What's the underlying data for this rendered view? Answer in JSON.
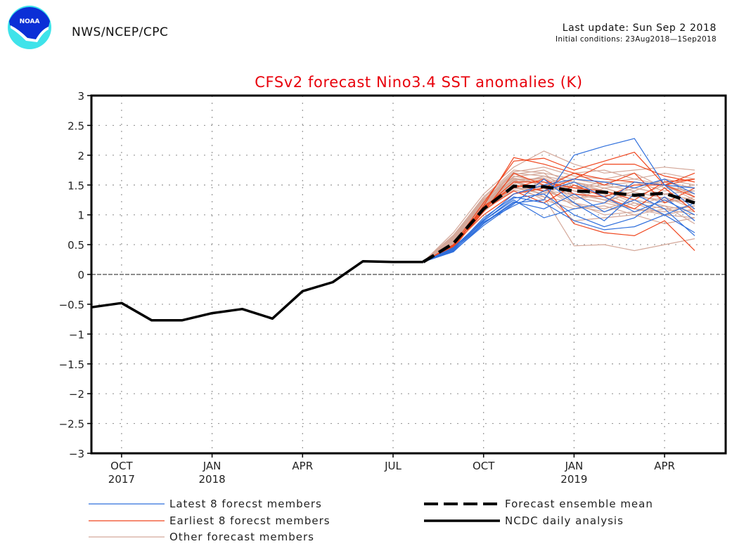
{
  "header": {
    "org": "NWS/NCEP/CPC",
    "last_update": "Last update: Sun Sep  2 2018",
    "initial_conditions": "Initial conditions: 23Aug2018—1Sep2018",
    "logo": "noaa-logo"
  },
  "colors": {
    "title": "#e8000b",
    "latest": "#2f6fdc",
    "earliest": "#f0461e",
    "other": "#d4a89a",
    "mean": "#000000",
    "analysis": "#000000"
  },
  "chart_data": {
    "type": "line",
    "title": "CFSv2 forecast Nino3.4 SST anomalies (K)",
    "xlabel": "",
    "ylabel": "",
    "ylim": [
      -3,
      3
    ],
    "yticks": [
      3,
      2.5,
      2,
      1.5,
      1,
      0.5,
      0,
      -0.5,
      -1,
      -1.5,
      -2,
      -2.5,
      -3
    ],
    "ytick_labels": [
      "3",
      "2.5",
      "2",
      "1.5",
      "1",
      "0.5",
      "0",
      "−0.5",
      "−1",
      "−1.5",
      "−2",
      "−2.5",
      "−3"
    ],
    "x_months": [
      "Sep 2017",
      "Oct 2017",
      "Nov 2017",
      "Dec 2017",
      "Jan 2018",
      "Feb 2018",
      "Mar 2018",
      "Apr 2018",
      "May 2018",
      "Jun 2018",
      "Jul 2018",
      "Aug 2018",
      "Sep 2018",
      "Oct 2018",
      "Nov 2018",
      "Dec 2018",
      "Jan 2019",
      "Feb 2019",
      "Mar 2019",
      "Apr 2019",
      "May 2019"
    ],
    "xticks": [
      {
        "month_index": 1,
        "label": "OCT",
        "year": "2017"
      },
      {
        "month_index": 4,
        "label": "JAN",
        "year": "2018"
      },
      {
        "month_index": 7,
        "label": "APR",
        "year": ""
      },
      {
        "month_index": 10,
        "label": "JUL",
        "year": ""
      },
      {
        "month_index": 13,
        "label": "OCT",
        "year": ""
      },
      {
        "month_index": 16,
        "label": "JAN",
        "year": "2019"
      },
      {
        "month_index": 19,
        "label": "APR",
        "year": ""
      }
    ],
    "grid": true,
    "zero_line": true,
    "analysis": {
      "name": "NCDC daily analysis",
      "start_index": 0,
      "values": [
        -0.55,
        -0.48,
        -0.77,
        -0.77,
        -0.65,
        -0.58,
        -0.74,
        -0.28,
        -0.13,
        0.22,
        0.21,
        0.21
      ]
    },
    "ensemble_mean": {
      "name": "Forecast ensemble mean",
      "start_index": 11,
      "values": [
        0.21,
        0.52,
        1.1,
        1.48,
        1.47,
        1.4,
        1.38,
        1.33,
        1.36,
        1.2
      ]
    },
    "members_start_index": 11,
    "latest_members": [
      [
        0.21,
        0.38,
        0.85,
        1.2,
        1.25,
        2.0,
        2.15,
        2.28,
        1.5,
        1.1
      ],
      [
        0.21,
        0.4,
        0.9,
        1.25,
        0.95,
        1.1,
        1.2,
        1.55,
        1.5,
        1.45
      ],
      [
        0.21,
        0.42,
        0.95,
        1.3,
        1.2,
        0.9,
        0.75,
        0.8,
        1.0,
        0.7
      ],
      [
        0.21,
        0.44,
        0.88,
        1.15,
        1.4,
        1.55,
        1.3,
        1.05,
        1.25,
        1.0
      ],
      [
        0.21,
        0.39,
        0.82,
        1.18,
        1.6,
        1.2,
        0.9,
        1.35,
        1.1,
        0.65
      ],
      [
        0.21,
        0.45,
        0.92,
        1.35,
        1.5,
        1.6,
        1.55,
        1.45,
        1.6,
        1.35
      ],
      [
        0.21,
        0.41,
        0.86,
        1.22,
        1.1,
        1.35,
        1.05,
        1.25,
        1.0,
        1.2
      ],
      [
        0.21,
        0.43,
        0.9,
        1.28,
        1.35,
        1.0,
        0.8,
        0.95,
        1.3,
        0.9
      ]
    ],
    "earliest_members": [
      [
        0.21,
        0.45,
        1.15,
        1.96,
        1.85,
        1.7,
        1.6,
        1.55,
        1.5,
        1.6
      ],
      [
        0.21,
        0.5,
        1.2,
        1.9,
        1.95,
        1.75,
        1.9,
        2.05,
        1.5,
        1.3
      ],
      [
        0.21,
        0.48,
        1.1,
        1.5,
        1.4,
        1.6,
        1.85,
        1.85,
        1.65,
        1.55
      ],
      [
        0.21,
        0.46,
        1.05,
        1.7,
        1.5,
        0.85,
        0.7,
        0.65,
        0.9,
        0.4
      ],
      [
        0.21,
        0.5,
        1.0,
        1.35,
        1.45,
        1.7,
        1.5,
        1.7,
        1.2,
        1.45
      ],
      [
        0.21,
        0.47,
        1.15,
        1.45,
        1.6,
        1.35,
        1.3,
        1.5,
        1.5,
        1.7
      ],
      [
        0.21,
        0.44,
        1.08,
        1.4,
        1.2,
        1.5,
        1.3,
        1.1,
        1.45,
        1.05
      ],
      [
        0.21,
        0.49,
        1.12,
        1.55,
        1.55,
        1.45,
        1.4,
        1.25,
        1.55,
        1.6
      ]
    ],
    "other_members": [
      [
        0.21,
        0.7,
        1.35,
        1.8,
        2.07,
        1.85,
        1.7,
        1.75,
        1.8,
        1.75
      ],
      [
        0.21,
        0.65,
        1.3,
        1.75,
        1.7,
        1.6,
        1.55,
        1.6,
        1.5,
        1.35
      ],
      [
        0.21,
        0.6,
        1.25,
        1.7,
        1.65,
        1.45,
        1.5,
        1.4,
        1.6,
        1.5
      ],
      [
        0.21,
        0.55,
        1.15,
        1.6,
        1.3,
        0.48,
        0.5,
        0.4,
        0.5,
        0.6
      ],
      [
        0.21,
        0.62,
        1.2,
        1.65,
        1.55,
        1.3,
        1.2,
        1.1,
        1.05,
        1.15
      ],
      [
        0.21,
        0.58,
        1.1,
        1.55,
        1.45,
        1.2,
        1.0,
        1.05,
        1.15,
        0.85
      ],
      [
        0.21,
        0.66,
        1.28,
        1.72,
        1.8,
        1.65,
        1.6,
        1.7,
        1.45,
        1.4
      ],
      [
        0.21,
        0.52,
        1.05,
        1.45,
        1.35,
        1.55,
        1.4,
        1.2,
        1.0,
        0.95
      ],
      [
        0.21,
        0.56,
        1.18,
        1.6,
        1.6,
        1.25,
        1.45,
        1.3,
        1.25,
        1.2
      ],
      [
        0.21,
        0.6,
        1.22,
        1.68,
        1.75,
        1.5,
        1.3,
        1.45,
        1.35,
        1.25
      ],
      [
        0.21,
        0.54,
        1.12,
        1.5,
        1.25,
        1.1,
        1.15,
        1.0,
        0.85,
        0.95
      ],
      [
        0.21,
        0.64,
        1.26,
        1.62,
        1.5,
        1.7,
        1.75,
        1.6,
        1.7,
        1.6
      ],
      [
        0.21,
        0.57,
        1.16,
        1.58,
        1.4,
        1.35,
        1.25,
        1.35,
        1.2,
        1.3
      ],
      [
        0.21,
        0.61,
        1.2,
        1.52,
        1.65,
        1.55,
        1.45,
        1.5,
        1.55,
        1.45
      ],
      [
        0.21,
        0.53,
        1.08,
        1.48,
        1.35,
        0.9,
        0.95,
        1.0,
        1.1,
        1.0
      ],
      [
        0.21,
        0.59,
        1.14,
        1.56,
        1.55,
        1.4,
        1.35,
        1.15,
        1.3,
        1.1
      ],
      [
        0.21,
        0.63,
        1.24,
        1.7,
        1.45,
        1.6,
        1.5,
        1.55,
        1.4,
        1.5
      ],
      [
        0.21,
        0.55,
        1.1,
        1.42,
        1.3,
        1.2,
        1.1,
        1.25,
        1.15,
        1.05
      ],
      [
        0.21,
        0.6,
        1.18,
        1.64,
        1.7,
        1.3,
        1.2,
        1.4,
        1.6,
        1.3
      ],
      [
        0.21,
        0.57,
        1.13,
        1.5,
        1.45,
        1.15,
        1.05,
        1.2,
        1.1,
        1.15
      ],
      [
        0.21,
        0.62,
        1.21,
        1.6,
        1.5,
        1.45,
        1.55,
        1.45,
        1.35,
        1.4
      ],
      [
        0.21,
        0.58,
        1.15,
        1.55,
        1.38,
        1.28,
        1.32,
        1.38,
        1.28,
        1.2
      ],
      [
        0.21,
        0.52,
        1.06,
        1.46,
        1.4,
        1.5,
        1.4,
        1.3,
        1.5,
        1.25
      ],
      [
        0.21,
        0.6,
        1.2,
        1.58,
        1.62,
        1.4,
        1.25,
        1.1,
        1.0,
        1.1
      ]
    ],
    "legend": [
      {
        "label": "Latest 8 forecst members",
        "style": "latest"
      },
      {
        "label": "Earliest 8 forecst members",
        "style": "earliest"
      },
      {
        "label": "Other forecast members",
        "style": "other"
      },
      {
        "label": "Forecast ensemble mean",
        "style": "mean"
      },
      {
        "label": "NCDC daily analysis",
        "style": "analysis"
      }
    ],
    "legend_position": "bottom"
  }
}
